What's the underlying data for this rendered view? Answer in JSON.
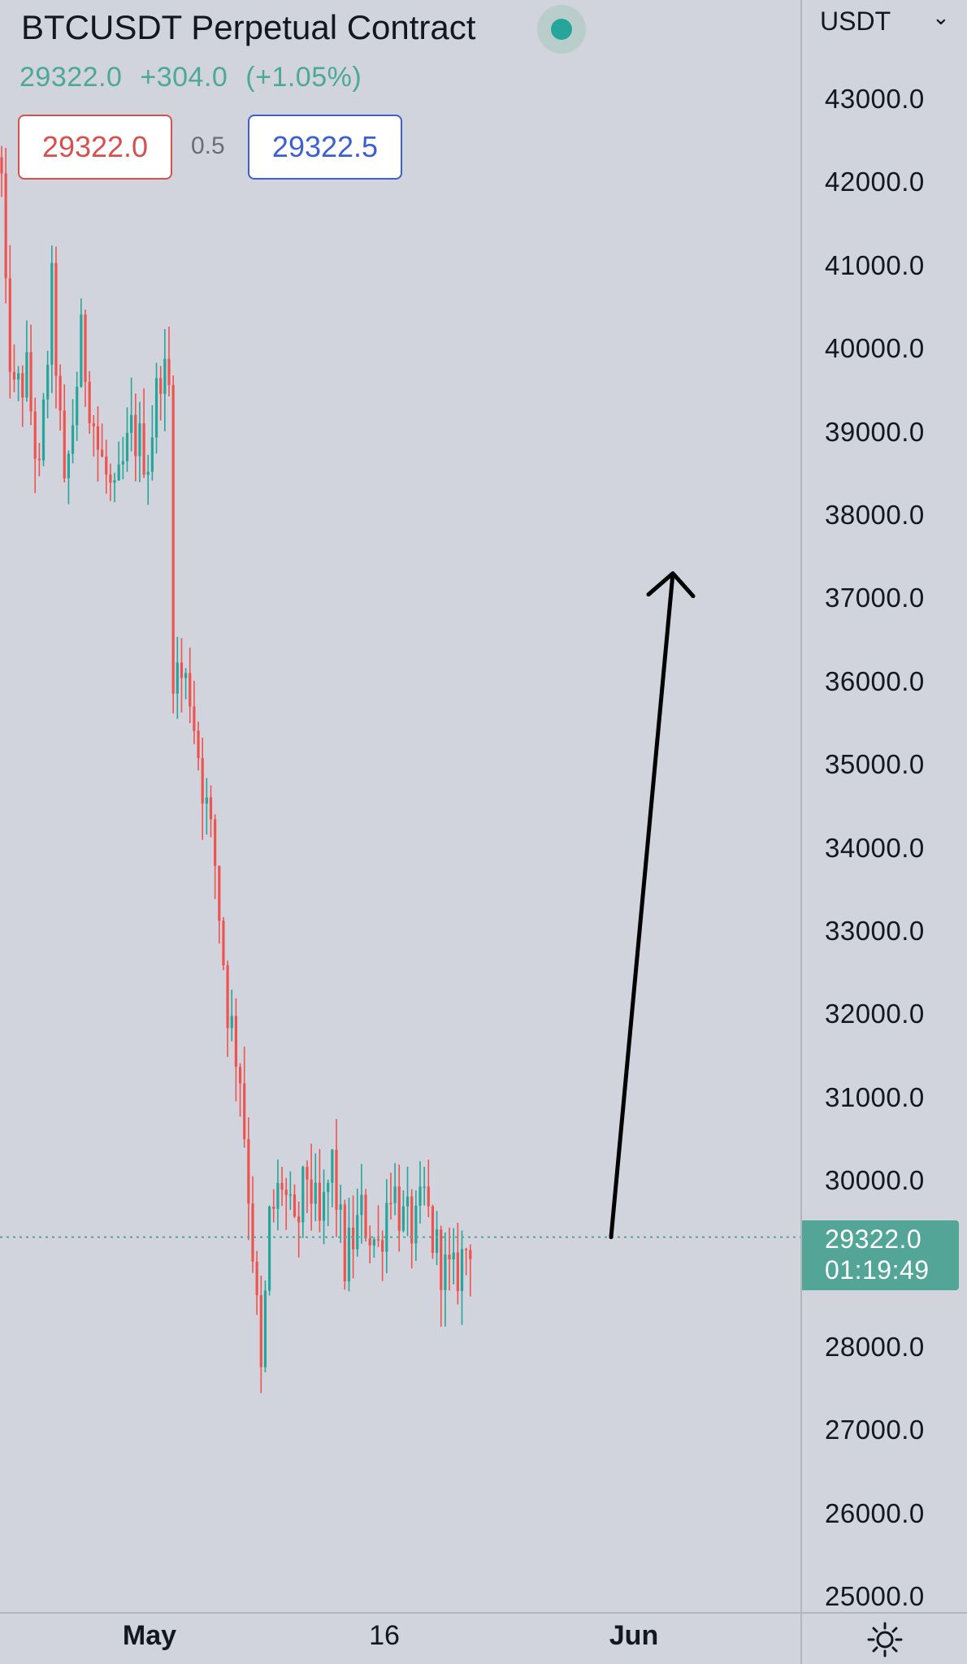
{
  "header": {
    "title": "BTCUSDT Perpetual Contract",
    "last": "29322.0",
    "change": "+304.0",
    "change_pct": "(+1.05%)",
    "sell_price": "29322.0",
    "spread": "0.5",
    "buy_price": "29322.5",
    "status_color": "#26a69a"
  },
  "price_axis": {
    "currency": "USDT",
    "currency_icon": "chevron-down-icon",
    "last_price_label": "29322.0",
    "countdown": "01:19:49"
  },
  "time_axis": {
    "labels": [
      "May",
      "16",
      "Jun"
    ]
  },
  "colors": {
    "up": "#26a69a",
    "down": "#ef5350",
    "background": "#d1d4dc",
    "annotation": "#000000"
  },
  "chart_data": {
    "type": "candlestick",
    "symbol": "BTCUSDT",
    "timeframe_note": "intraday candles, late April to end of May",
    "ylim": [
      25000,
      43000
    ],
    "yticks": [
      43000,
      42000,
      41000,
      40000,
      39000,
      38000,
      37000,
      36000,
      35000,
      34000,
      33000,
      32000,
      31000,
      30000,
      28000,
      27000,
      26000,
      25000
    ],
    "ytick_labels": [
      "43000.0",
      "42000.0",
      "41000.0",
      "40000.0",
      "39000.0",
      "38000.0",
      "37000.0",
      "36000.0",
      "35000.0",
      "34000.0",
      "33000.0",
      "32000.0",
      "31000.0",
      "30000.0",
      "28000.0",
      "27000.0",
      "26000.0",
      "25000.0"
    ],
    "last_price": 29322.0,
    "xticks": [
      "May",
      "16",
      "Jun"
    ],
    "annotation": {
      "type": "arrow",
      "from_price": 29322,
      "to_price": 37300,
      "meaning": "projected move up"
    },
    "anchors": [
      [
        0,
        42000
      ],
      [
        1,
        40500
      ],
      [
        3,
        39400
      ],
      [
        6,
        39700
      ],
      [
        9,
        38400
      ],
      [
        12,
        40700
      ],
      [
        15,
        38200
      ],
      [
        19,
        40100
      ],
      [
        23,
        38800
      ],
      [
        27,
        38100
      ],
      [
        31,
        39000
      ],
      [
        35,
        38700
      ],
      [
        38,
        39800
      ],
      [
        40,
        39500
      ],
      [
        41,
        36200
      ],
      [
        45,
        35900
      ],
      [
        48,
        34800
      ],
      [
        51,
        33800
      ],
      [
        54,
        32100
      ],
      [
        57,
        31300
      ],
      [
        60,
        29200
      ],
      [
        62,
        27600
      ],
      [
        64,
        29500
      ],
      [
        67,
        30000
      ],
      [
        70,
        29300
      ],
      [
        73,
        30100
      ],
      [
        76,
        29400
      ],
      [
        79,
        30200
      ],
      [
        82,
        29000
      ],
      [
        86,
        29600
      ],
      [
        90,
        29200
      ],
      [
        93,
        30000
      ],
      [
        96,
        29500
      ],
      [
        99,
        29400
      ],
      [
        101,
        29800
      ],
      [
        103,
        29300
      ],
      [
        106,
        28900
      ],
      [
        108,
        28800
      ],
      [
        112,
        29322
      ]
    ]
  }
}
